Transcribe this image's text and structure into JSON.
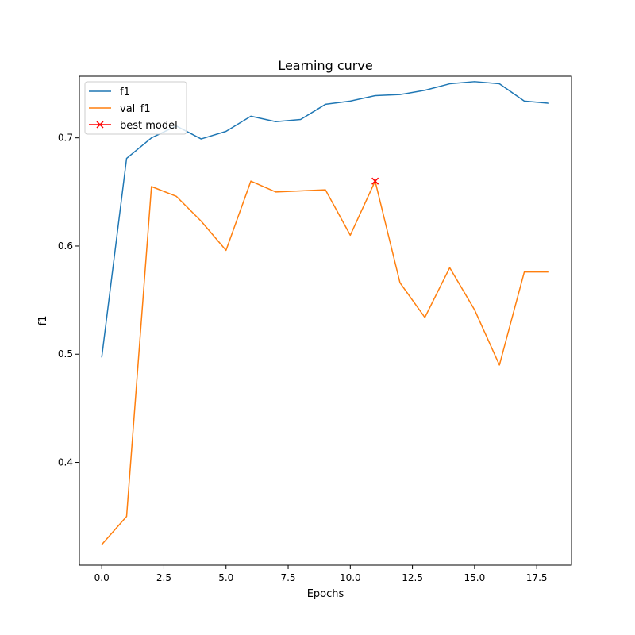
{
  "chart_data": {
    "type": "line",
    "title": "Learning curve",
    "xlabel": "Epochs",
    "ylabel": "f1",
    "xlim": [
      -0.9,
      18.9
    ],
    "ylim": [
      0.305,
      0.757
    ],
    "xticks": [
      0.0,
      2.5,
      5.0,
      7.5,
      10.0,
      12.5,
      15.0,
      17.5
    ],
    "xtick_labels": [
      "0.0",
      "2.5",
      "5.0",
      "7.5",
      "10.0",
      "12.5",
      "15.0",
      "17.5"
    ],
    "yticks": [
      0.4,
      0.5,
      0.6,
      0.7
    ],
    "ytick_labels": [
      "0.4",
      "0.5",
      "0.6",
      "0.7"
    ],
    "grid": false,
    "legend_position": "top-left",
    "x": [
      0,
      1,
      2,
      3,
      4,
      5,
      6,
      7,
      8,
      9,
      10,
      11,
      12,
      13,
      14,
      15,
      16,
      17,
      18
    ],
    "series": [
      {
        "name": "f1",
        "color": "#1f77b4",
        "values": [
          0.497,
          0.681,
          0.7,
          0.711,
          0.699,
          0.706,
          0.72,
          0.715,
          0.717,
          0.731,
          0.734,
          0.739,
          0.74,
          0.744,
          0.75,
          0.752,
          0.75,
          0.734,
          0.732
        ]
      },
      {
        "name": "val_f1",
        "color": "#ff7f0e",
        "values": [
          0.324,
          0.35,
          0.655,
          0.646,
          0.623,
          0.596,
          0.66,
          0.65,
          0.651,
          0.652,
          0.61,
          0.66,
          0.566,
          0.534,
          0.58,
          0.541,
          0.49,
          0.576,
          0.576
        ]
      }
    ],
    "markers": [
      {
        "name": "best model",
        "color": "#ff0000",
        "symbol": "x",
        "x": 11,
        "y": 0.66
      }
    ]
  }
}
